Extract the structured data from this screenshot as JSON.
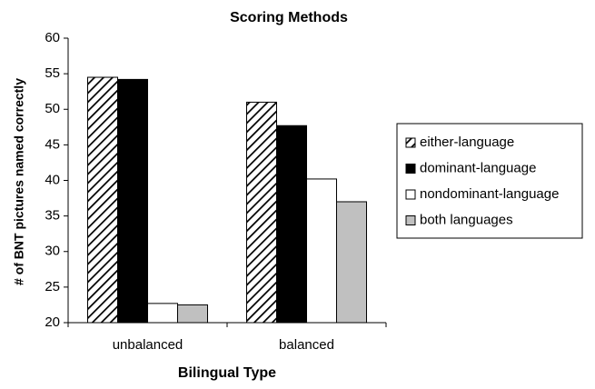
{
  "chart_data": {
    "type": "bar",
    "title": "Scoring Methods",
    "x_label": "Bilingual Type",
    "y_label": "# of BNT pictures named correctly",
    "categories": [
      "unbalanced",
      "balanced"
    ],
    "series": [
      {
        "name": "either-language",
        "color": "#ffffff",
        "hatch": true,
        "values": [
          54.5,
          51.0
        ]
      },
      {
        "name": "dominant-language",
        "color": "#000000",
        "values": [
          54.2,
          47.7
        ]
      },
      {
        "name": "nondominant-language",
        "color": "#ffffff",
        "values": [
          22.7,
          40.2
        ]
      },
      {
        "name": "both languages",
        "color": "#c0c0c0",
        "values": [
          22.5,
          37.0
        ]
      }
    ],
    "ylim": [
      20,
      60
    ],
    "yticks": [
      20,
      25,
      30,
      35,
      40,
      45,
      50,
      55,
      60
    ],
    "grid": false,
    "legend": "right"
  }
}
